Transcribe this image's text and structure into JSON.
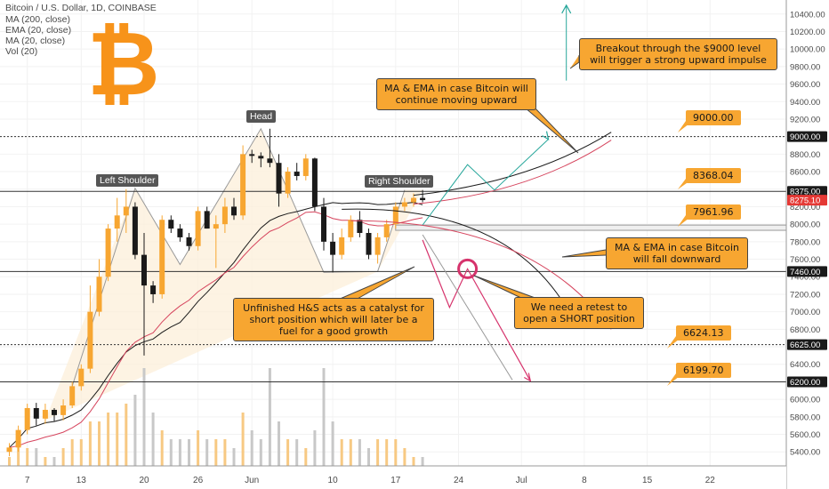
{
  "legend": {
    "title": "Bitcoin / U.S. Dollar, 1D, COINBASE",
    "lines": [
      "MA (200, close)",
      "EMA (20, close)",
      "MA (20, close)",
      "Vol (20)"
    ]
  },
  "logo_text": "₿",
  "colors": {
    "up": "#f7a631",
    "down": "#1a1a1a",
    "accent": "#f7a631",
    "ema": "#d6455e",
    "ma": "#1a1a1a",
    "bull_arrow": "#26a69a",
    "bear_arrow": "#d6336c",
    "current_price": "#e53935",
    "tag_bg": "#1a1a1a"
  },
  "annotations": {
    "breakout": "Breakout through the $9000 level will trigger a strong upward impulse",
    "ma_up": "MA & EMA in case Bitcoin will continue moving upward",
    "ma_down": "MA & EMA in case Bitcoin will fall downward",
    "hs": "Unfinished H&S acts as a catalyst for short position which will later be a fuel for a good growth",
    "retest": "We need a retest to open a SHORT position"
  },
  "pattern_labels": {
    "head": "Head",
    "left_shoulder": "Left Shoulder",
    "right_shoulder": "Right Shoulder"
  },
  "level_labels": {
    "l9000": "9000.00",
    "l8368": "8368.04",
    "l7961": "7961.96",
    "l6624": "6624.13",
    "l6199": "6199.70"
  },
  "price_tags": {
    "t9000": "9000.00",
    "t8375": "8375.00",
    "t8275": "8275.10",
    "t7460": "7460.00",
    "t6625": "6625.00",
    "t6200": "6200.00"
  },
  "chart_data": {
    "type": "candlestick",
    "title": "Bitcoin / U.S. Dollar, 1D, COINBASE",
    "ylim": [
      5240,
      10560
    ],
    "y_ticks": [
      5400,
      5600,
      5800,
      6000,
      6200,
      6400,
      6600,
      6800,
      7000,
      7200,
      7400,
      7600,
      7800,
      8000,
      8200,
      8400,
      8600,
      8800,
      9000,
      9200,
      9400,
      9600,
      9800,
      10000,
      10200,
      10400
    ],
    "y_tick_labels": [
      "5400.00",
      "5600.00",
      "5800.00",
      "6000.00",
      "6200.00",
      "6400.00",
      "6600.00",
      "6800.00",
      "7000.00",
      "7200.00",
      "7400.00",
      "7600.00",
      "7800.00",
      "8000.00",
      "8200.00",
      "8400.00",
      "8600.00",
      "8800.00",
      "9000.00",
      "9200.00",
      "9400.00",
      "9600.00",
      "9800.00",
      "10000.00",
      "10200.00",
      "10400.00"
    ],
    "x_ticks": [
      {
        "label": "7",
        "day": 2
      },
      {
        "label": "13",
        "day": 8
      },
      {
        "label": "20",
        "day": 15
      },
      {
        "label": "26",
        "day": 21
      },
      {
        "label": "Jun",
        "day": 27
      },
      {
        "label": "10",
        "day": 36
      },
      {
        "label": "17",
        "day": 43
      },
      {
        "label": "24",
        "day": 50
      },
      {
        "label": "Jul",
        "day": 57
      },
      {
        "label": "8",
        "day": 64
      },
      {
        "label": "15",
        "day": 71
      },
      {
        "label": "22",
        "day": 78
      }
    ],
    "candles": [
      [
        0,
        5400,
        5500,
        5350,
        5450
      ],
      [
        1,
        5450,
        5700,
        5400,
        5650
      ],
      [
        2,
        5650,
        5950,
        5600,
        5900
      ],
      [
        3,
        5900,
        5960,
        5700,
        5780
      ],
      [
        4,
        5780,
        5950,
        5720,
        5880
      ],
      [
        5,
        5880,
        5900,
        5750,
        5820
      ],
      [
        6,
        5820,
        6000,
        5760,
        5930
      ],
      [
        7,
        5930,
        6200,
        5900,
        6150
      ],
      [
        8,
        6150,
        6400,
        6100,
        6350
      ],
      [
        9,
        6350,
        7300,
        6300,
        7000
      ],
      [
        10,
        7000,
        7600,
        6950,
        7400
      ],
      [
        11,
        7400,
        8000,
        7350,
        7950
      ],
      [
        12,
        7950,
        8300,
        7800,
        8100
      ],
      [
        13,
        8100,
        8400,
        7900,
        8200
      ],
      [
        14,
        8200,
        8250,
        7600,
        7650
      ],
      [
        15,
        7650,
        7900,
        6500,
        7300
      ],
      [
        16,
        7300,
        7350,
        7100,
        7200
      ],
      [
        17,
        7200,
        8100,
        7150,
        8050
      ],
      [
        18,
        8050,
        8100,
        7900,
        7950
      ],
      [
        19,
        7950,
        8000,
        7800,
        7850
      ],
      [
        20,
        7850,
        7900,
        7700,
        7750
      ],
      [
        21,
        7750,
        8200,
        7700,
        8150
      ],
      [
        22,
        8150,
        8200,
        7950,
        7950
      ],
      [
        23,
        7950,
        8100,
        7500,
        8000
      ],
      [
        24,
        8000,
        8300,
        7900,
        8200
      ],
      [
        25,
        8200,
        8300,
        8050,
        8100
      ],
      [
        26,
        8100,
        8900,
        8050,
        8800
      ],
      [
        27,
        8800,
        8850,
        8700,
        8780
      ],
      [
        28,
        8780,
        8820,
        8650,
        8750
      ],
      [
        29,
        8750,
        9090,
        8650,
        8700
      ],
      [
        30,
        8700,
        8800,
        8200,
        8350
      ],
      [
        31,
        8350,
        8650,
        8300,
        8600
      ],
      [
        32,
        8600,
        8700,
        8500,
        8550
      ],
      [
        33,
        8550,
        8800,
        8500,
        8750
      ],
      [
        34,
        8750,
        8760,
        8150,
        8200
      ],
      [
        35,
        8200,
        8300,
        7700,
        7800
      ],
      [
        36,
        7800,
        7900,
        7450,
        7650
      ],
      [
        37,
        7650,
        7950,
        7600,
        7850
      ],
      [
        38,
        7850,
        8100,
        7800,
        8050
      ],
      [
        39,
        8050,
        8150,
        7850,
        7900
      ],
      [
        40,
        7900,
        7950,
        7600,
        7650
      ],
      [
        41,
        7650,
        7900,
        7550,
        7850
      ],
      [
        42,
        7850,
        8050,
        7800,
        8000
      ],
      [
        43,
        8000,
        8250,
        7950,
        8200
      ],
      [
        44,
        8200,
        8300,
        8150,
        8250
      ],
      [
        45,
        8250,
        8350,
        8200,
        8300
      ],
      [
        46,
        8300,
        8390,
        8250,
        8275
      ]
    ],
    "volume": [
      1,
      3,
      2,
      2,
      1,
      1,
      2,
      3,
      3,
      5,
      5,
      6,
      6,
      7,
      8,
      11,
      6,
      4,
      3,
      3,
      3,
      4,
      3,
      3,
      3,
      2,
      6,
      4,
      3,
      11,
      5,
      3,
      3,
      2,
      4,
      11,
      5,
      3,
      3,
      3,
      2,
      3,
      3,
      3,
      2,
      1,
      1
    ]
  }
}
